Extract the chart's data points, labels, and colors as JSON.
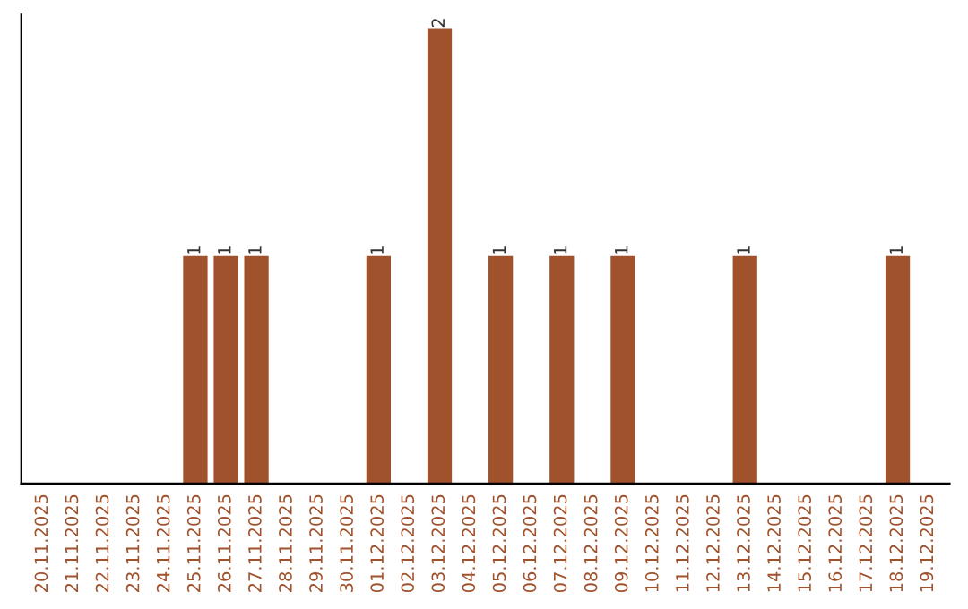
{
  "chart_data": {
    "type": "bar",
    "categories": [
      "20.11.2025",
      "21.11.2025",
      "22.11.2025",
      "23.11.2025",
      "24.11.2025",
      "25.11.2025",
      "26.11.2025",
      "27.11.2025",
      "28.11.2025",
      "29.11.2025",
      "30.11.2025",
      "01.12.2025",
      "02.12.2025",
      "03.12.2025",
      "04.12.2025",
      "05.12.2025",
      "06.12.2025",
      "07.12.2025",
      "08.12.2025",
      "09.12.2025",
      "10.12.2025",
      "11.12.2025",
      "12.12.2025",
      "13.12.2025",
      "14.12.2025",
      "15.12.2025",
      "16.12.2025",
      "17.12.2025",
      "18.12.2025",
      "19.12.2025"
    ],
    "values": [
      0,
      0,
      0,
      0,
      0,
      1,
      1,
      1,
      0,
      0,
      0,
      1,
      0,
      2,
      0,
      1,
      0,
      1,
      0,
      1,
      0,
      0,
      0,
      1,
      0,
      0,
      0,
      0,
      1,
      0
    ],
    "color": "#a0522d",
    "value_labels": [
      null,
      null,
      null,
      null,
      null,
      "1",
      "1",
      "1",
      null,
      null,
      null,
      "1",
      null,
      "2",
      null,
      "1",
      null,
      "1",
      null,
      "1",
      null,
      null,
      null,
      "1",
      null,
      null,
      null,
      null,
      "1",
      null
    ],
    "tick_labels": "x",
    "grid": false
  }
}
